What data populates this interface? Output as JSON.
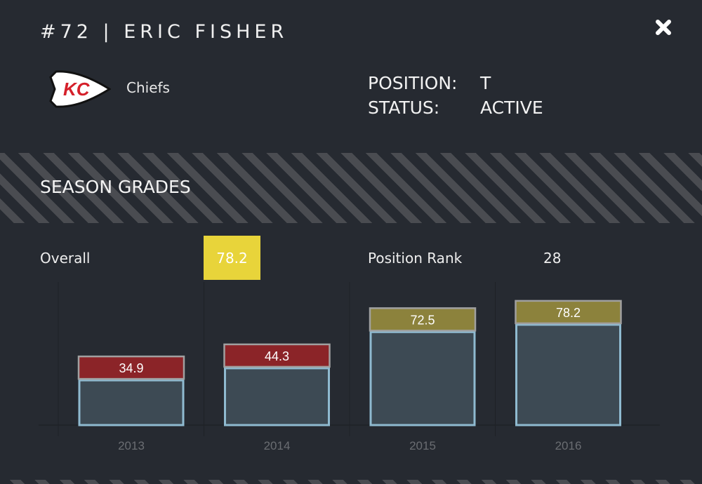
{
  "header": {
    "title": "#72 | ERIC FISHER",
    "close_icon": "close-icon"
  },
  "team": {
    "name": "Chiefs",
    "logo": "chiefs-arrowhead-logo"
  },
  "info": {
    "position_label": "POSITION:",
    "position": "T",
    "status_label": "STATUS:",
    "status": "ACTIVE"
  },
  "section": {
    "title": "SEASON GRADES"
  },
  "summary": {
    "overall_label": "Overall",
    "overall_value": "78.2",
    "overall_color": "#e8d43a",
    "rank_label": "Position Rank",
    "rank_value": "28"
  },
  "chart_data": {
    "type": "bar",
    "categories": [
      "2013",
      "2014",
      "2015",
      "2016"
    ],
    "values": [
      34.9,
      44.3,
      72.5,
      78.2
    ],
    "label_colors": [
      "#8b2428",
      "#8b2428",
      "#8c823c",
      "#8c823c"
    ],
    "bar_color": "#3d4a54",
    "ylim": [
      0,
      100
    ],
    "grid": false
  }
}
